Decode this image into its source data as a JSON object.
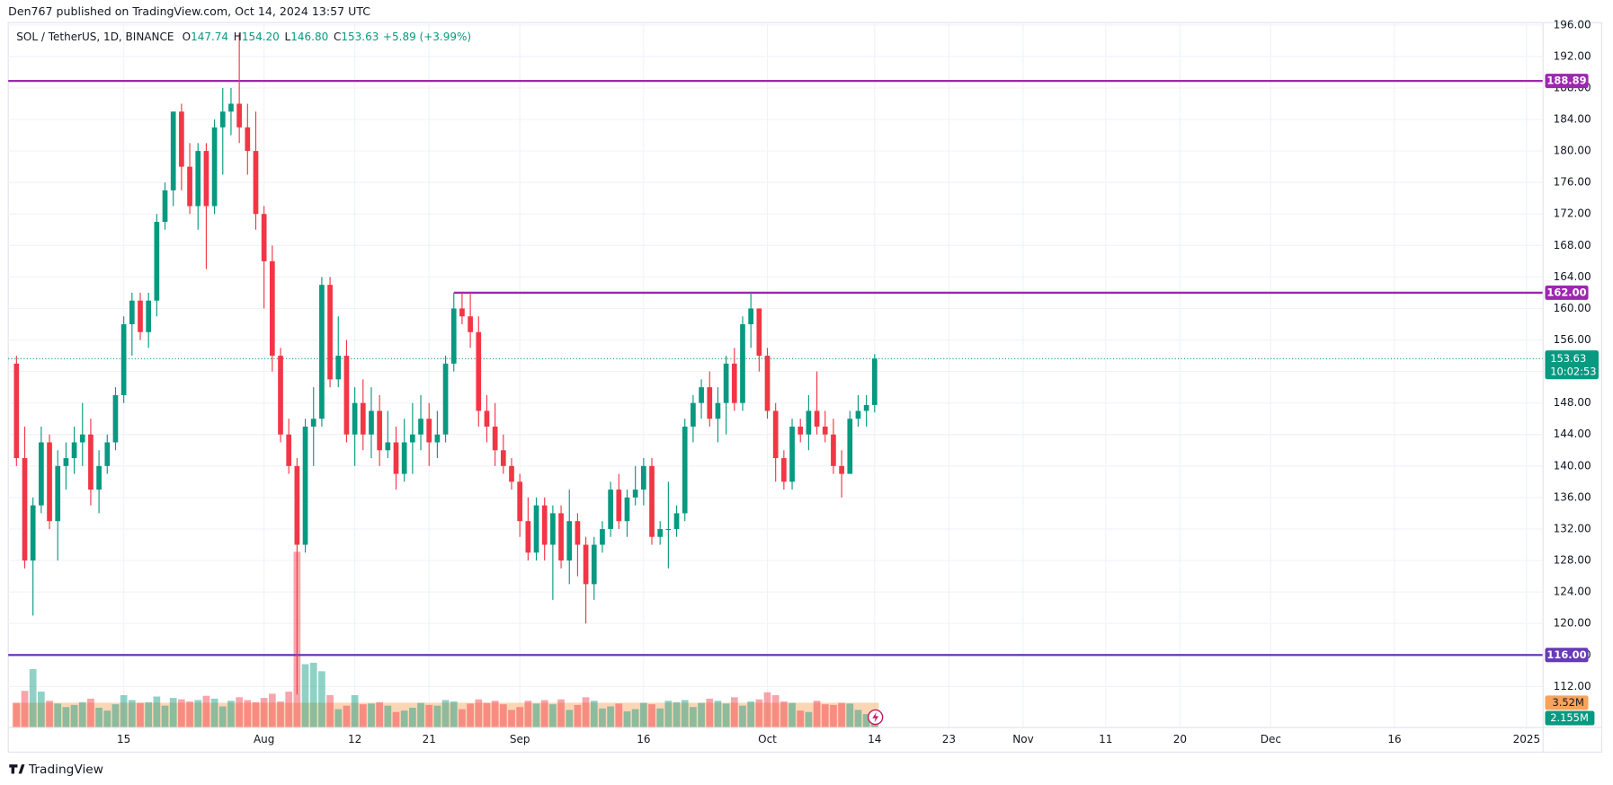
{
  "header": {
    "published": "Den767 published on TradingView.com, Oct 14, 2024 13:57 UTC",
    "brand": "TradingView"
  },
  "chart_data": {
    "type": "candlestick",
    "legend": {
      "symbol": "SOL / TetherUS, 1D, BINANCE",
      "fields": [
        {
          "prefix": "O",
          "text": "147.74"
        },
        {
          "prefix": "H",
          "text": "154.20"
        },
        {
          "prefix": "L",
          "text": "146.80"
        },
        {
          "prefix": "C",
          "text": "153.63"
        }
      ],
      "change": "+5.89 (+3.99%)"
    },
    "up_color": "#089981",
    "down_color": "#f23645",
    "x": [
      "2024-07-02",
      "2024-07-03",
      "2024-07-04",
      "2024-07-05",
      "2024-07-06",
      "2024-07-07",
      "2024-07-08",
      "2024-07-09",
      "2024-07-10",
      "2024-07-11",
      "2024-07-12",
      "2024-07-13",
      "2024-07-14",
      "2024-07-15",
      "2024-07-16",
      "2024-07-17",
      "2024-07-18",
      "2024-07-19",
      "2024-07-20",
      "2024-07-21",
      "2024-07-22",
      "2024-07-23",
      "2024-07-24",
      "2024-07-25",
      "2024-07-26",
      "2024-07-27",
      "2024-07-28",
      "2024-07-29",
      "2024-07-30",
      "2024-07-31",
      "2024-08-01",
      "2024-08-02",
      "2024-08-03",
      "2024-08-04",
      "2024-08-05",
      "2024-08-06",
      "2024-08-07",
      "2024-08-08",
      "2024-08-09",
      "2024-08-10",
      "2024-08-11",
      "2024-08-12",
      "2024-08-13",
      "2024-08-14",
      "2024-08-15",
      "2024-08-16",
      "2024-08-17",
      "2024-08-18",
      "2024-08-19",
      "2024-08-20",
      "2024-08-21",
      "2024-08-22",
      "2024-08-23",
      "2024-08-24",
      "2024-08-25",
      "2024-08-26",
      "2024-08-27",
      "2024-08-28",
      "2024-08-29",
      "2024-08-30",
      "2024-08-31",
      "2024-09-01",
      "2024-09-02",
      "2024-09-03",
      "2024-09-04",
      "2024-09-05",
      "2024-09-06",
      "2024-09-07",
      "2024-09-08",
      "2024-09-09",
      "2024-09-10",
      "2024-09-11",
      "2024-09-12",
      "2024-09-13",
      "2024-09-14",
      "2024-09-15",
      "2024-09-16",
      "2024-09-17",
      "2024-09-18",
      "2024-09-19",
      "2024-09-20",
      "2024-09-21",
      "2024-09-22",
      "2024-09-23",
      "2024-09-24",
      "2024-09-25",
      "2024-09-26",
      "2024-09-27",
      "2024-09-28",
      "2024-09-29",
      "2024-09-30",
      "2024-10-01",
      "2024-10-02",
      "2024-10-03",
      "2024-10-04",
      "2024-10-05",
      "2024-10-06",
      "2024-10-07",
      "2024-10-08",
      "2024-10-09",
      "2024-10-10",
      "2024-10-11",
      "2024-10-12",
      "2024-10-13",
      "2024-10-14"
    ],
    "open": [
      153,
      141,
      128,
      135,
      143,
      133,
      140,
      141,
      143,
      144,
      137,
      140,
      143,
      149,
      158,
      161,
      157,
      161,
      171,
      175,
      185,
      178,
      173,
      180,
      173,
      183,
      185,
      186,
      183,
      180,
      172,
      166,
      154,
      144,
      140,
      130,
      145,
      146,
      163,
      151,
      154,
      144,
      148,
      144,
      147,
      142,
      143,
      139,
      143,
      144,
      146,
      143,
      144,
      153,
      160,
      159,
      157,
      147,
      145,
      142,
      140,
      138,
      133,
      129,
      135,
      130,
      134,
      128,
      133,
      130,
      125,
      130,
      132,
      137,
      133,
      136,
      137,
      140,
      131,
      132,
      132,
      134,
      145,
      148,
      150,
      146,
      148,
      153,
      148,
      158,
      160,
      154,
      147,
      141,
      138,
      145,
      144,
      147,
      145,
      144,
      140,
      139,
      146,
      147,
      147.74
    ],
    "high": [
      154,
      145,
      136,
      145,
      144,
      142,
      143,
      145,
      148,
      146,
      142,
      144,
      150,
      159,
      162,
      162,
      162,
      172,
      176,
      185,
      186,
      181,
      181,
      181,
      184,
      188,
      188,
      195,
      186,
      185,
      173,
      168,
      155,
      146,
      141,
      146,
      150,
      164,
      164,
      159,
      156,
      150,
      151,
      150,
      149,
      147,
      145,
      146,
      148,
      149,
      148,
      147,
      154,
      162,
      162,
      162,
      159,
      149,
      148,
      144,
      141,
      139,
      136,
      136,
      136,
      135,
      135,
      137,
      134,
      131,
      131,
      133,
      138,
      139,
      137,
      140,
      141,
      141,
      133,
      138,
      135,
      146,
      149,
      151,
      152,
      150,
      154,
      155,
      159,
      162,
      160,
      155,
      148,
      142,
      146,
      146,
      149,
      152,
      147,
      146,
      142,
      147,
      149,
      149,
      154.2
    ],
    "low": [
      140,
      127,
      121,
      134,
      132,
      128,
      137,
      139,
      140,
      135,
      134,
      139,
      142,
      148,
      154,
      156,
      155,
      159,
      170,
      173,
      175,
      172,
      170,
      165,
      172,
      177,
      182,
      181,
      177,
      170,
      160,
      152,
      143,
      139,
      111,
      129,
      140,
      145,
      150,
      150,
      143,
      140,
      142,
      141,
      140,
      141,
      137,
      138,
      139,
      142,
      140,
      141,
      143,
      152,
      158,
      155,
      145,
      143,
      140,
      139,
      137,
      131,
      128,
      128,
      128,
      123,
      127,
      125,
      126,
      120,
      123,
      129,
      131,
      132,
      131,
      135,
      135,
      130,
      130,
      127,
      131,
      133,
      143,
      146,
      145,
      143,
      144,
      147,
      147,
      155,
      152,
      146,
      138,
      137,
      137,
      143,
      142,
      144,
      143,
      139,
      136,
      139,
      145,
      145,
      146.8
    ],
    "close": [
      141,
      128,
      135,
      143,
      133,
      140,
      141,
      143,
      144,
      137,
      140,
      143,
      149,
      158,
      161,
      157,
      161,
      171,
      175,
      185,
      178,
      173,
      180,
      173,
      183,
      185,
      186,
      183,
      180,
      172,
      166,
      154,
      144,
      140,
      130,
      145,
      146,
      163,
      151,
      154,
      144,
      148,
      144,
      147,
      142,
      143,
      139,
      143,
      144,
      146,
      143,
      144,
      153,
      160,
      159,
      157,
      147,
      145,
      142,
      140,
      138,
      133,
      129,
      135,
      130,
      134,
      128,
      133,
      130,
      125,
      130,
      132,
      137,
      133,
      136,
      137,
      140,
      131,
      132,
      132,
      134,
      145,
      148,
      150,
      146,
      148,
      153,
      148,
      158,
      160,
      154,
      147,
      141,
      138,
      145,
      144,
      147,
      145,
      144,
      140,
      139,
      146,
      147,
      147.74,
      153.63
    ],
    "volume": [
      3.5,
      5.2,
      8.3,
      5.1,
      3.8,
      3.4,
      2.9,
      3.2,
      3.6,
      4.1,
      2.8,
      2.4,
      3.3,
      4.6,
      3.9,
      3.5,
      3.6,
      4.4,
      3.1,
      4.2,
      4.0,
      3.7,
      3.9,
      4.5,
      4.1,
      3.0,
      3.8,
      4.3,
      3.9,
      3.6,
      4.2,
      4.8,
      3.7,
      5.1,
      25.0,
      9.0,
      9.2,
      8.0,
      4.6,
      2.6,
      3.1,
      4.6,
      3.3,
      3.4,
      3.6,
      3.1,
      2.2,
      2.4,
      2.8,
      3.5,
      3.2,
      3.1,
      3.9,
      3.7,
      2.6,
      3.4,
      4.0,
      3.5,
      3.8,
      3.3,
      2.5,
      2.9,
      3.8,
      3.4,
      3.9,
      3.3,
      4.0,
      2.5,
      3.2,
      4.3,
      3.8,
      2.7,
      3.0,
      3.4,
      2.3,
      2.6,
      3.5,
      3.3,
      2.7,
      3.8,
      3.6,
      3.9,
      2.9,
      3.5,
      4.1,
      3.8,
      3.4,
      4.3,
      3.1,
      3.7,
      4.0,
      5.0,
      4.6,
      3.7,
      3.5,
      2.4,
      2.2,
      3.8,
      3.3,
      3.2,
      3.5,
      3.4,
      2.5,
      1.9,
      2.155
    ],
    "volume_ma": {
      "value": 3.52,
      "label": "3.52M",
      "color": "#f7a35c"
    },
    "volume_last_label": "2.155M",
    "xlim": [
      "2024-07-01",
      "2025-01-03"
    ],
    "ylim": [
      106.8,
      196.3
    ],
    "yticks": [
      {
        "value": 112,
        "label": "112.00"
      },
      {
        "value": 116,
        "label": "116.00"
      },
      {
        "value": 120,
        "label": "120.00"
      },
      {
        "value": 124,
        "label": "124.00"
      },
      {
        "value": 128,
        "label": "128.00"
      },
      {
        "value": 132,
        "label": "132.00"
      },
      {
        "value": 136,
        "label": "136.00"
      },
      {
        "value": 140,
        "label": "140.00"
      },
      {
        "value": 144,
        "label": "144.00"
      },
      {
        "value": 148,
        "label": "148.00"
      },
      {
        "value": 152,
        "label": "152.00"
      },
      {
        "value": 156,
        "label": "156.00"
      },
      {
        "value": 160,
        "label": "160.00"
      },
      {
        "value": 164,
        "label": "164.00"
      },
      {
        "value": 168,
        "label": "168.00"
      },
      {
        "value": 172,
        "label": "172.00"
      },
      {
        "value": 176,
        "label": "176.00"
      },
      {
        "value": 180,
        "label": "180.00"
      },
      {
        "value": 184,
        "label": "184.00"
      },
      {
        "value": 188,
        "label": "188.00"
      },
      {
        "value": 192,
        "label": "192.00"
      },
      {
        "value": 196,
        "label": "196.00"
      }
    ],
    "xticks": [
      {
        "value": "2024-07-15",
        "label": "15"
      },
      {
        "value": "2024-08-01",
        "label": "Aug"
      },
      {
        "value": "2024-08-12",
        "label": "12"
      },
      {
        "value": "2024-08-21",
        "label": "21"
      },
      {
        "value": "2024-09-01",
        "label": "Sep"
      },
      {
        "value": "2024-09-16",
        "label": "16"
      },
      {
        "value": "2024-10-01",
        "label": "Oct"
      },
      {
        "value": "2024-10-14",
        "label": "14"
      },
      {
        "value": "2024-10-23",
        "label": "23"
      },
      {
        "value": "2024-11-01",
        "label": "Nov"
      },
      {
        "value": "2024-11-11",
        "label": "11"
      },
      {
        "value": "2024-11-20",
        "label": "20"
      },
      {
        "value": "2024-12-01",
        "label": "Dec"
      },
      {
        "value": "2024-12-16",
        "label": "16"
      },
      {
        "value": "2025-01-01",
        "label": "2025"
      }
    ],
    "grid": true,
    "levels": [
      {
        "value": 188.89,
        "label": "188.89",
        "color": "#9c27b0"
      },
      {
        "value": 162,
        "label": "162.00",
        "color": "#9c27b0",
        "start": "2024-08-24"
      },
      {
        "value": 116,
        "label": "116.00",
        "color": "#673ab7"
      }
    ],
    "last_price": {
      "value": 153.63,
      "label": "153.63",
      "countdown": "10:02:53",
      "color": "#089981"
    }
  }
}
